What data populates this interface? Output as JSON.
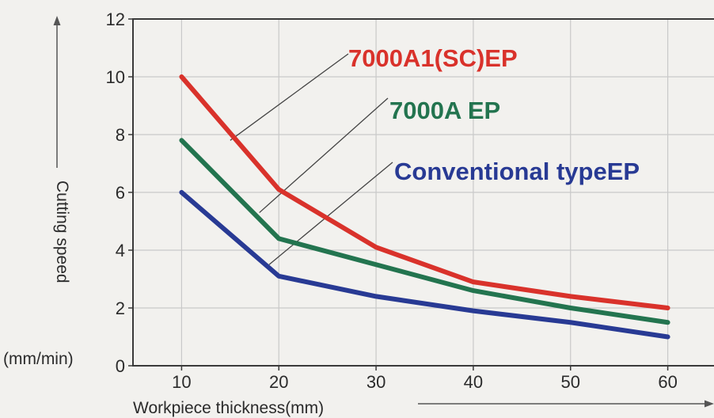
{
  "chart_data": {
    "type": "line",
    "xlabel": "Workpiece thickness(mm)",
    "ylabel": "Cutting speed",
    "yunit": "(mm/min)",
    "x": [
      10,
      20,
      30,
      40,
      50,
      60
    ],
    "xticks": [
      "10",
      "20",
      "30",
      "40",
      "50",
      "60"
    ],
    "yticks": [
      "0",
      "2",
      "4",
      "6",
      "8",
      "10",
      "12"
    ],
    "xlim": [
      5,
      65
    ],
    "ylim": [
      0,
      12
    ],
    "grid": true,
    "series": [
      {
        "name": "7000A1(SC)EP",
        "color": "#d9322b",
        "values": [
          10.0,
          6.1,
          4.1,
          2.9,
          2.4,
          2.0
        ]
      },
      {
        "name": "7000A EP",
        "color": "#23744f",
        "values": [
          7.8,
          4.4,
          3.5,
          2.6,
          2.0,
          1.5
        ]
      },
      {
        "name": "Conventional typeEP",
        "color": "#283a94",
        "values": [
          6.0,
          3.1,
          2.4,
          1.9,
          1.5,
          1.0
        ]
      }
    ]
  }
}
